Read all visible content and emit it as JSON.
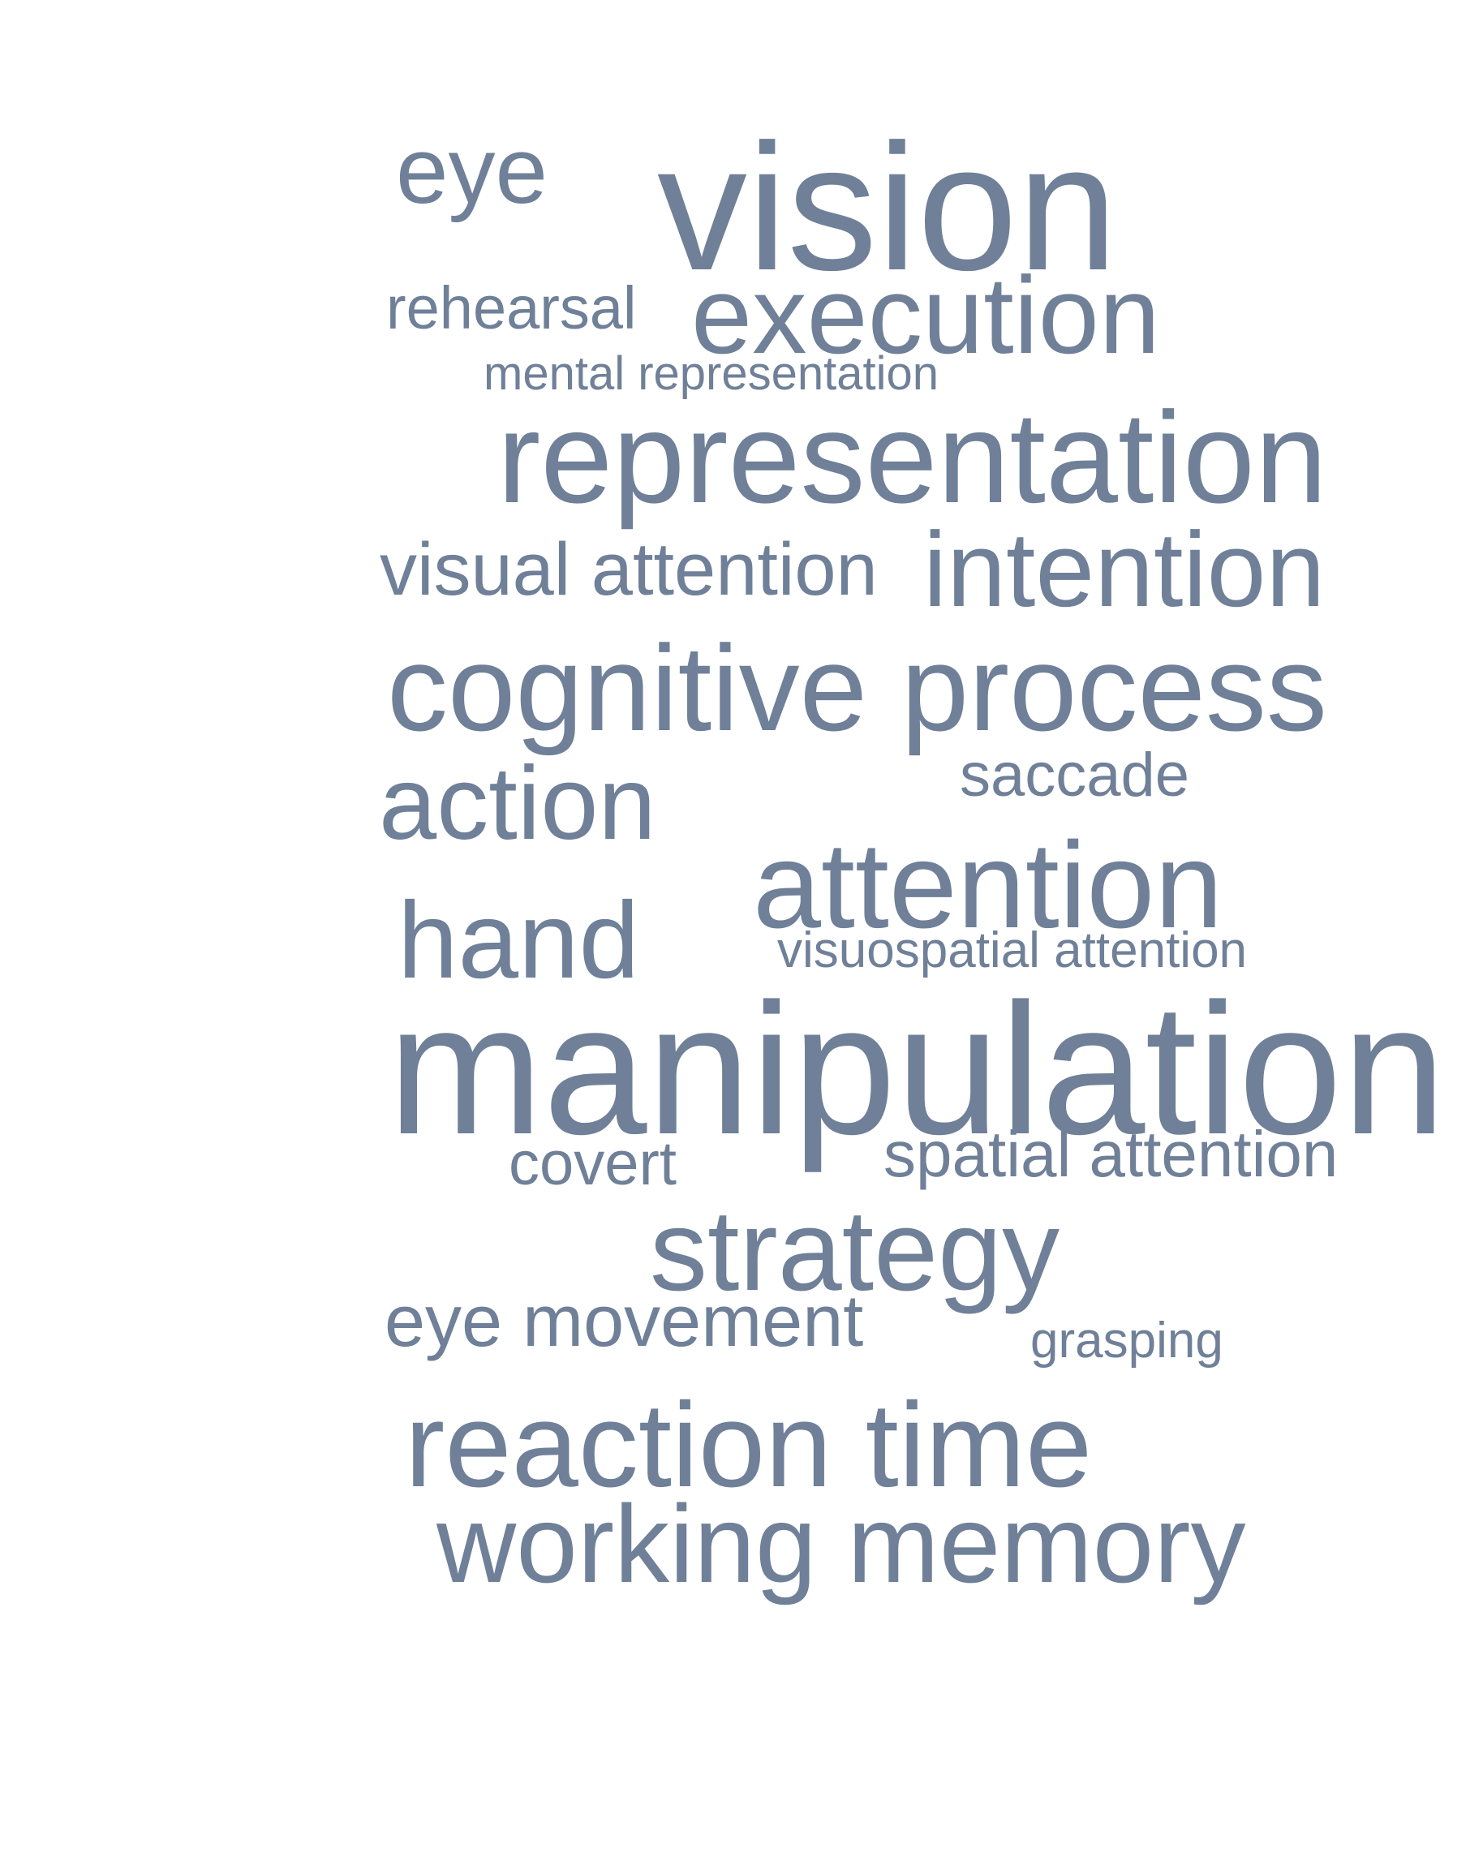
{
  "colors": {
    "background": "#ffffff",
    "word": "#6f8098"
  },
  "words": [
    {
      "text": "eye"
    },
    {
      "text": "vision"
    },
    {
      "text": "rehearsal"
    },
    {
      "text": "execution"
    },
    {
      "text": "mental representation"
    },
    {
      "text": "representation"
    },
    {
      "text": "visual attention"
    },
    {
      "text": "intention"
    },
    {
      "text": "cognitive process"
    },
    {
      "text": "saccade"
    },
    {
      "text": "action"
    },
    {
      "text": "attention"
    },
    {
      "text": "hand"
    },
    {
      "text": "visuospatial attention"
    },
    {
      "text": "manipulation"
    },
    {
      "text": "covert"
    },
    {
      "text": "spatial attention"
    },
    {
      "text": "strategy"
    },
    {
      "text": "eye movement"
    },
    {
      "text": "grasping"
    },
    {
      "text": "reaction time"
    },
    {
      "text": "working memory"
    }
  ]
}
